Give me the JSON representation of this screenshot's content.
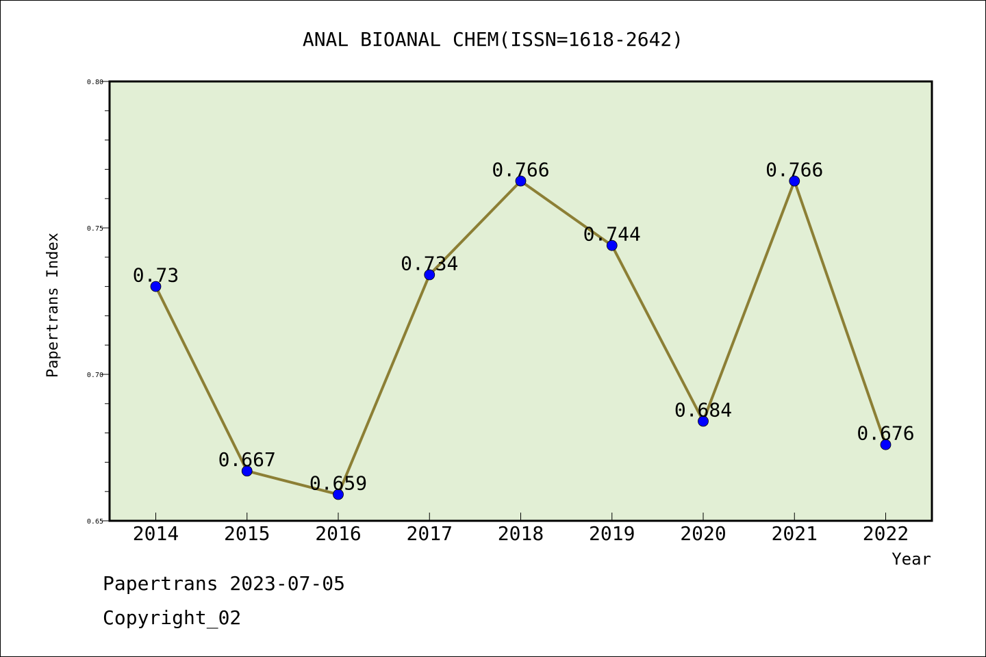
{
  "chart_data": {
    "type": "line",
    "title": "ANAL BIOANAL CHEM(ISSN=1618-2642)",
    "xlabel": "Year",
    "ylabel": "Papertrans Index",
    "categories": [
      "2014",
      "2015",
      "2016",
      "2017",
      "2018",
      "2019",
      "2020",
      "2021",
      "2022"
    ],
    "values": [
      0.73,
      0.667,
      0.659,
      0.734,
      0.766,
      0.744,
      0.684,
      0.766,
      0.676
    ],
    "data_labels": [
      "0.73",
      "0.667",
      "0.659",
      "0.734",
      "0.766",
      "0.744",
      "0.684",
      "0.766",
      "0.676"
    ],
    "ylim": [
      0.65,
      0.8
    ],
    "yticks": [
      0.65,
      0.7,
      0.75,
      0.8
    ],
    "ytick_labels": [
      "0.65",
      "0.70",
      "0.75",
      "0.80"
    ],
    "grid": false,
    "colors": {
      "plot_background": "#e2efd5",
      "line": "#8c7f35",
      "marker": "#0000ff"
    }
  },
  "footer": {
    "date_line": "Papertrans 2023-07-05",
    "copyright": "Copyright_02"
  }
}
